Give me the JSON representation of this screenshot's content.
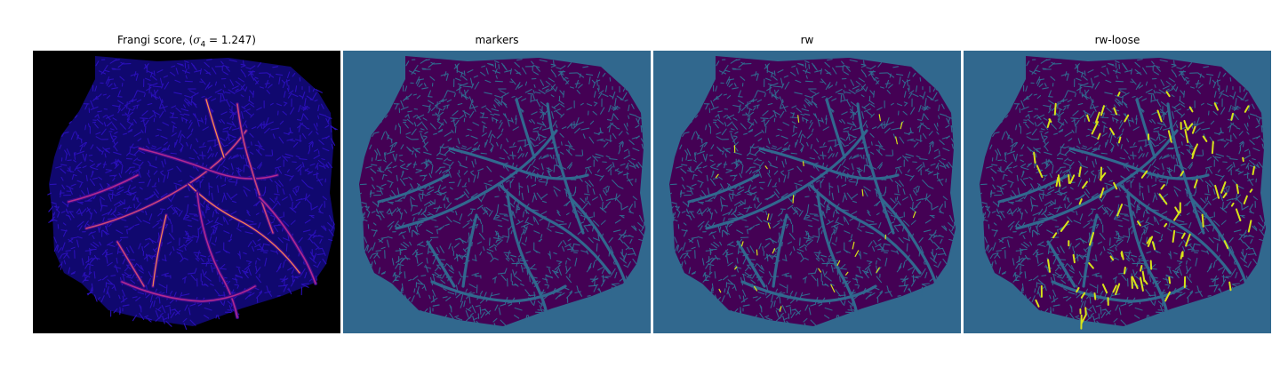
{
  "figure": {
    "panels": [
      {
        "title_prefix": "Frangi score, (",
        "title_math": "σ",
        "title_sub": "4",
        "title_suffix": " = 1.247)",
        "colormap": "plasma",
        "background": "#000000"
      },
      {
        "title": "markers",
        "colormap": "viridis",
        "background": "#31688e"
      },
      {
        "title": "rw",
        "colormap": "viridis",
        "background": "#31688e"
      },
      {
        "title": "rw-loose",
        "colormap": "viridis",
        "background": "#31688e"
      }
    ],
    "colors": {
      "viridis_dark": "#440154",
      "viridis_mid": "#31688e",
      "viridis_bright": "#d8e219",
      "plasma_low": "#0d0887",
      "plasma_mid": "#cc4778",
      "plasma_high": "#f0f921"
    }
  }
}
